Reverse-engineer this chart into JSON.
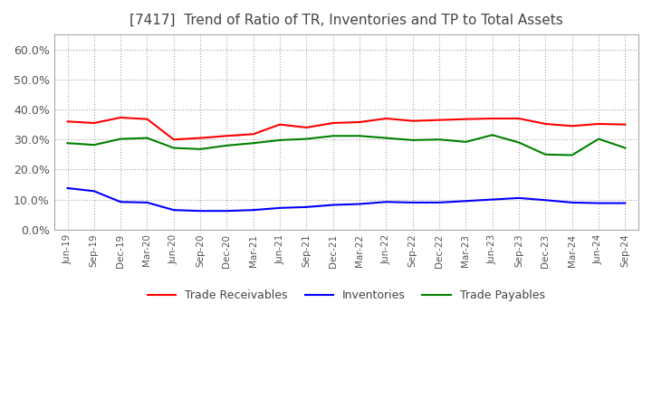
{
  "title": "[7417]  Trend of Ratio of TR, Inventories and TP to Total Assets",
  "title_fontsize": 11,
  "ylim": [
    0.0,
    0.65
  ],
  "yticks": [
    0.0,
    0.1,
    0.2,
    0.3,
    0.4,
    0.5,
    0.6
  ],
  "x_labels": [
    "Jun-19",
    "Sep-19",
    "Dec-19",
    "Mar-20",
    "Jun-20",
    "Sep-20",
    "Dec-20",
    "Mar-21",
    "Jun-21",
    "Sep-21",
    "Dec-21",
    "Mar-22",
    "Jun-22",
    "Sep-22",
    "Dec-22",
    "Mar-23",
    "Jun-23",
    "Sep-23",
    "Dec-23",
    "Mar-24",
    "Jun-24",
    "Sep-24"
  ],
  "trade_receivables": [
    0.36,
    0.355,
    0.373,
    0.368,
    0.3,
    0.305,
    0.312,
    0.318,
    0.35,
    0.34,
    0.355,
    0.358,
    0.37,
    0.362,
    0.365,
    0.368,
    0.37,
    0.37,
    0.352,
    0.345,
    0.352,
    0.35
  ],
  "inventories": [
    0.138,
    0.128,
    0.092,
    0.09,
    0.065,
    0.062,
    0.062,
    0.065,
    0.072,
    0.075,
    0.082,
    0.085,
    0.092,
    0.09,
    0.09,
    0.095,
    0.1,
    0.105,
    0.098,
    0.09,
    0.088,
    0.088
  ],
  "trade_payables": [
    0.288,
    0.282,
    0.302,
    0.305,
    0.272,
    0.268,
    0.28,
    0.288,
    0.298,
    0.302,
    0.312,
    0.312,
    0.305,
    0.298,
    0.3,
    0.292,
    0.315,
    0.29,
    0.25,
    0.248,
    0.302,
    0.272
  ],
  "color_tr": "#FF0000",
  "color_inv": "#0000FF",
  "color_tp": "#008000",
  "legend_labels": [
    "Trade Receivables",
    "Inventories",
    "Trade Payables"
  ],
  "background_color": "#FFFFFF",
  "grid_color": "#AAAAAA",
  "line_width": 1.5
}
